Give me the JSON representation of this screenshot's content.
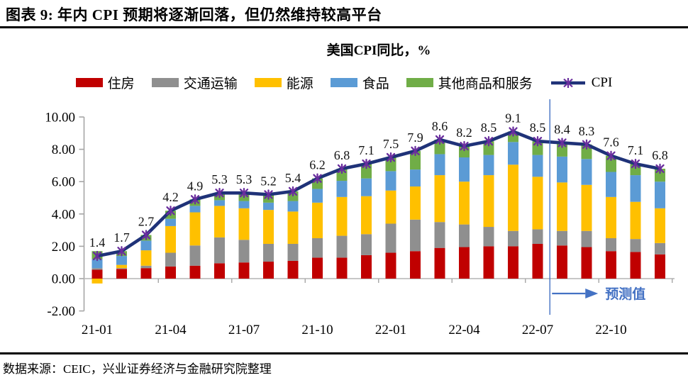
{
  "page": {
    "title": "图表 9:  年内 CPI 预期将逐渐回落，但仍然维持较高平台",
    "source_note": "数据来源：CEIC，兴业证券经济与金融研究院整理"
  },
  "chart_data": {
    "type": "bar",
    "subtype": "stacked-bar-with-line",
    "title": "美国CPI同比，%",
    "categories": [
      "21-01",
      "21-02",
      "21-03",
      "21-04",
      "21-05",
      "21-06",
      "21-07",
      "21-08",
      "21-09",
      "21-10",
      "21-11",
      "21-12",
      "22-01",
      "22-02",
      "22-03",
      "22-04",
      "22-05",
      "22-06",
      "22-07",
      "22-08",
      "22-09",
      "22-10",
      "22-11",
      "22-12"
    ],
    "x_tick_labels": [
      "21-01",
      "21-04",
      "21-07",
      "21-10",
      "22-01",
      "22-04",
      "22-07",
      "22-10"
    ],
    "ylim": [
      -2,
      10
    ],
    "y_ticks": [
      "10.00",
      "8.00",
      "6.00",
      "4.00",
      "2.00",
      "0.00",
      "-2.00"
    ],
    "grid": false,
    "legend_position": "top",
    "series": [
      {
        "name": "住房",
        "key": "housing",
        "type": "bar",
        "color": "#C00000",
        "values": [
          0.55,
          0.6,
          0.65,
          0.75,
          0.8,
          0.95,
          1.0,
          1.05,
          1.1,
          1.3,
          1.3,
          1.45,
          1.6,
          1.7,
          1.9,
          1.95,
          2.0,
          2.0,
          2.15,
          2.05,
          1.95,
          1.7,
          1.65,
          1.5
        ]
      },
      {
        "name": "交通运输",
        "key": "transport",
        "type": "bar",
        "color": "#8F8F8F",
        "values": [
          0.1,
          0.05,
          0.15,
          0.85,
          1.25,
          1.6,
          1.4,
          1.1,
          1.05,
          1.2,
          1.35,
          1.3,
          1.8,
          1.95,
          1.6,
          1.4,
          1.2,
          0.95,
          0.9,
          0.9,
          1.0,
          0.8,
          0.8,
          0.7
        ]
      },
      {
        "name": "能源",
        "key": "energy",
        "type": "bar",
        "color": "#FFC000",
        "values": [
          -0.3,
          0.2,
          0.95,
          1.65,
          2.05,
          1.95,
          1.95,
          2.1,
          2.0,
          2.2,
          2.4,
          2.35,
          2.05,
          2.05,
          2.9,
          2.65,
          3.2,
          4.1,
          3.25,
          3.0,
          2.85,
          2.55,
          2.3,
          2.15
        ]
      },
      {
        "name": "食品",
        "key": "food",
        "type": "bar",
        "color": "#5B9BD5",
        "values": [
          0.55,
          0.55,
          0.6,
          0.45,
          0.4,
          0.35,
          0.45,
          0.45,
          0.65,
          0.85,
          1.0,
          1.1,
          1.2,
          1.05,
          1.3,
          1.5,
          1.25,
          1.4,
          1.35,
          1.6,
          1.6,
          1.55,
          1.65,
          1.65
        ]
      },
      {
        "name": "其他商品和服务",
        "key": "other",
        "type": "bar",
        "color": "#70AD47",
        "values": [
          0.5,
          0.3,
          0.35,
          0.5,
          0.4,
          0.45,
          0.5,
          0.5,
          0.6,
          0.65,
          0.75,
          0.9,
          0.85,
          1.15,
          0.9,
          0.7,
          0.85,
          0.65,
          0.85,
          0.85,
          0.9,
          1.0,
          0.7,
          0.8
        ]
      },
      {
        "name": "CPI",
        "key": "cpi",
        "type": "line",
        "color": "#1F3278",
        "marker_color": "#6A2E9E",
        "data_labels": true,
        "values": [
          1.4,
          1.7,
          2.7,
          4.2,
          4.9,
          5.3,
          5.3,
          5.2,
          5.4,
          6.2,
          6.8,
          7.1,
          7.5,
          7.9,
          8.6,
          8.2,
          8.5,
          9.1,
          8.5,
          8.4,
          8.3,
          7.6,
          7.1,
          6.8
        ]
      }
    ],
    "annotation": {
      "forecast_label": "预测值",
      "forecast_start_index": 19,
      "forecast_start_category": "22-08",
      "color": "#4472C4"
    }
  }
}
